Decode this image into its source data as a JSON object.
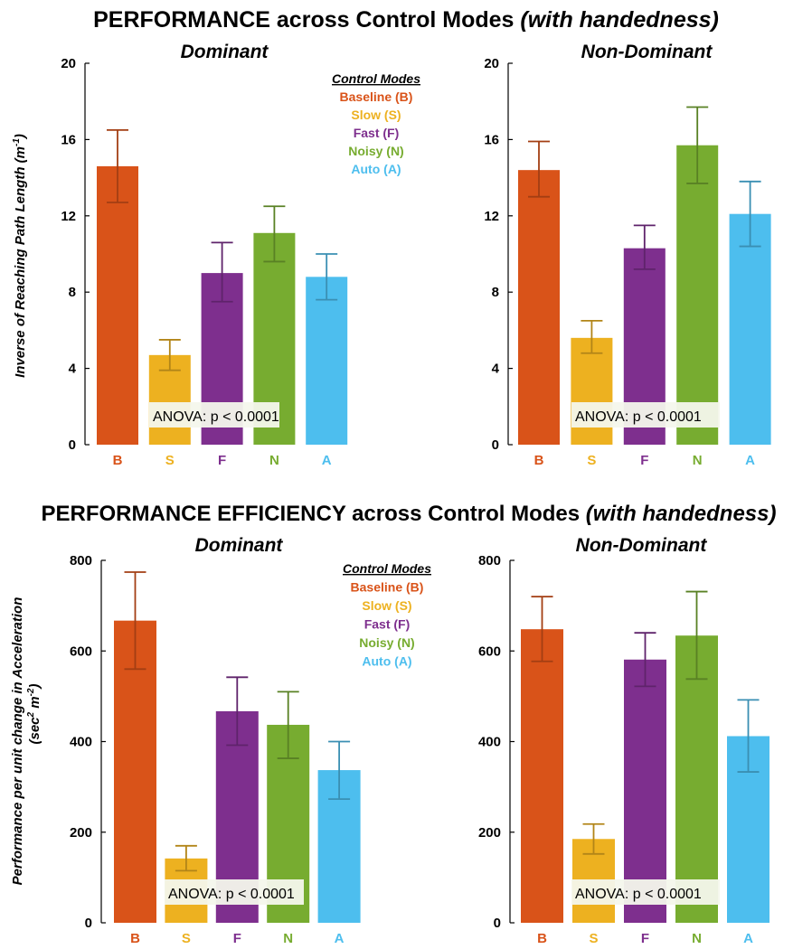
{
  "colors": {
    "B": "#d95319",
    "S": "#edb120",
    "F": "#7e2f8e",
    "N": "#77ac30",
    "A": "#4dbeee"
  },
  "sections": [
    {
      "title_main": "PERFORMANCE across Control Modes ",
      "title_italic": "(with handedness)",
      "ylabel": "Inverse of Reaching Path Length (m",
      "ylabel_sup": "-1",
      "ylabel_end": ")"
    },
    {
      "title_main": "PERFORMANCE EFFICIENCY across Control Modes ",
      "title_italic": "(with handedness)",
      "ylabel": "Performance per unit change in Acceleration",
      "ylabel2": "(sec",
      "ylabel2_sup1": "2",
      "ylabel2_mid": " m",
      "ylabel2_sup2": "-2",
      "ylabel2_end": ")"
    }
  ],
  "legend": {
    "heading": "Control Modes",
    "items": [
      {
        "key": "B",
        "label": "Baseline (B)"
      },
      {
        "key": "S",
        "label": "Slow (S)"
      },
      {
        "key": "F",
        "label": "Fast (F)"
      },
      {
        "key": "N",
        "label": "Noisy (N)"
      },
      {
        "key": "A",
        "label": "Auto (A)"
      }
    ]
  },
  "chart_data": [
    {
      "type": "bar",
      "title": "Dominant",
      "categories": [
        "B",
        "S",
        "F",
        "N",
        "A"
      ],
      "values": [
        14.6,
        4.7,
        9.0,
        11.1,
        8.8
      ],
      "error_low": [
        12.7,
        3.9,
        7.5,
        9.6,
        7.6
      ],
      "error_high": [
        16.5,
        5.5,
        10.6,
        12.5,
        10.0
      ],
      "ylim": [
        0,
        20
      ],
      "yticks": [
        0,
        4,
        8,
        12,
        16,
        20
      ],
      "annotation": "ANOVA: p < 0.0001"
    },
    {
      "type": "bar",
      "title": "Non-Dominant",
      "categories": [
        "B",
        "S",
        "F",
        "N",
        "A"
      ],
      "values": [
        14.4,
        5.6,
        10.3,
        15.7,
        12.1
      ],
      "error_low": [
        13.0,
        4.8,
        9.2,
        13.7,
        10.4
      ],
      "error_high": [
        15.9,
        6.5,
        11.5,
        17.7,
        13.8
      ],
      "ylim": [
        0,
        20
      ],
      "yticks": [
        0,
        4,
        8,
        12,
        16,
        20
      ],
      "annotation": "ANOVA: p < 0.0001"
    },
    {
      "type": "bar",
      "title": "Dominant",
      "categories": [
        "B",
        "S",
        "F",
        "N",
        "A"
      ],
      "values": [
        667,
        142,
        467,
        437,
        337
      ],
      "error_low": [
        560,
        115,
        392,
        363,
        273
      ],
      "error_high": [
        774,
        170,
        542,
        510,
        400
      ],
      "ylim": [
        0,
        800
      ],
      "yticks": [
        0,
        200,
        400,
        600,
        800
      ],
      "annotation": "ANOVA: p < 0.0001"
    },
    {
      "type": "bar",
      "title": "Non-Dominant",
      "categories": [
        "B",
        "S",
        "F",
        "N",
        "A"
      ],
      "values": [
        648,
        185,
        581,
        634,
        412
      ],
      "error_low": [
        577,
        152,
        522,
        538,
        333
      ],
      "error_high": [
        720,
        218,
        640,
        731,
        492
      ],
      "ylim": [
        0,
        800
      ],
      "yticks": [
        0,
        200,
        400,
        600,
        800
      ],
      "annotation": "ANOVA: p < 0.0001"
    }
  ]
}
